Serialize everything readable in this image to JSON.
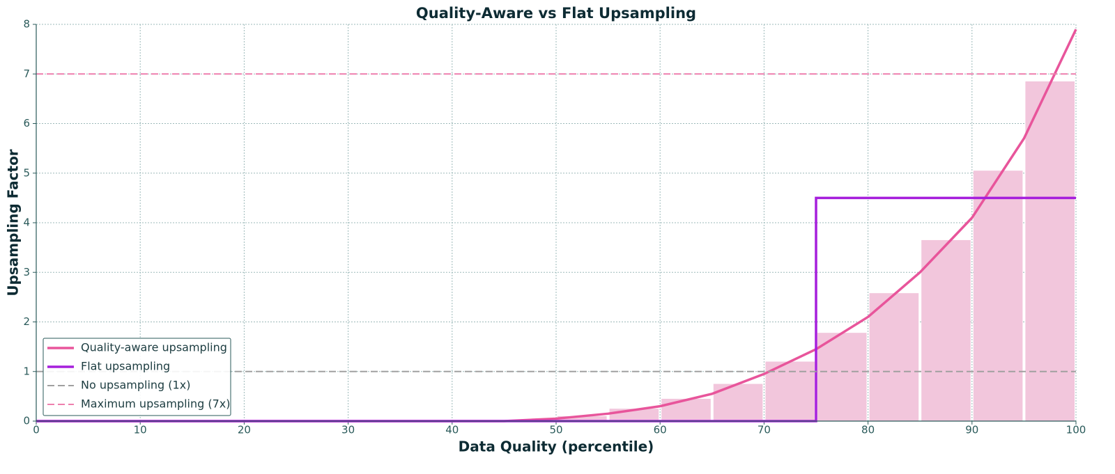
{
  "chart_data": {
    "type": "combo",
    "title": "Quality-Aware vs Flat Upsampling",
    "x_label": "Data Quality (percentile)",
    "y_label": "Upsampling Factor",
    "xlim": [
      0,
      100
    ],
    "xticks": [
      0,
      10,
      20,
      30,
      40,
      50,
      60,
      70,
      80,
      90,
      100
    ],
    "ylim": [
      0,
      8
    ],
    "yticks": [
      0,
      1,
      2,
      3,
      4,
      5,
      6,
      7,
      8
    ],
    "grid": true,
    "legend": "lower-left",
    "bars": {
      "type": "histogram",
      "color": "#f2c6dc",
      "bins": [
        50,
        55,
        60,
        65,
        70,
        75,
        80,
        85,
        90,
        95,
        100
      ],
      "values": [
        0.1,
        0.25,
        0.45,
        0.75,
        1.2,
        1.78,
        2.58,
        3.65,
        5.05,
        6.85
      ]
    },
    "series": [
      {
        "name": "Quality-aware upsampling",
        "type": "line",
        "color": "#e8559b",
        "style": "solid",
        "x": [
          0,
          5,
          10,
          15,
          20,
          25,
          30,
          35,
          40,
          45,
          50,
          55,
          60,
          65,
          70,
          75,
          80,
          85,
          90,
          95,
          100
        ],
        "values": [
          0,
          0,
          0,
          0,
          0,
          0,
          0,
          0,
          0,
          0,
          0.05,
          0.15,
          0.3,
          0.55,
          0.95,
          1.45,
          2.1,
          3.0,
          4.1,
          5.7,
          7.9
        ]
      },
      {
        "name": "Flat upsampling",
        "type": "line",
        "color": "#a61fdc",
        "style": "solid",
        "x": [
          0,
          75,
          75,
          100
        ],
        "values": [
          0,
          0,
          4.5,
          4.5
        ]
      },
      {
        "name": "No upsampling (1x)",
        "type": "hline",
        "color": "#a0a0a0",
        "style": "dashed",
        "values": [
          1
        ]
      },
      {
        "name": "Maximum upsampling (7x)",
        "type": "hline",
        "color": "#ee7fae",
        "style": "dashed",
        "values": [
          7
        ]
      }
    ]
  }
}
